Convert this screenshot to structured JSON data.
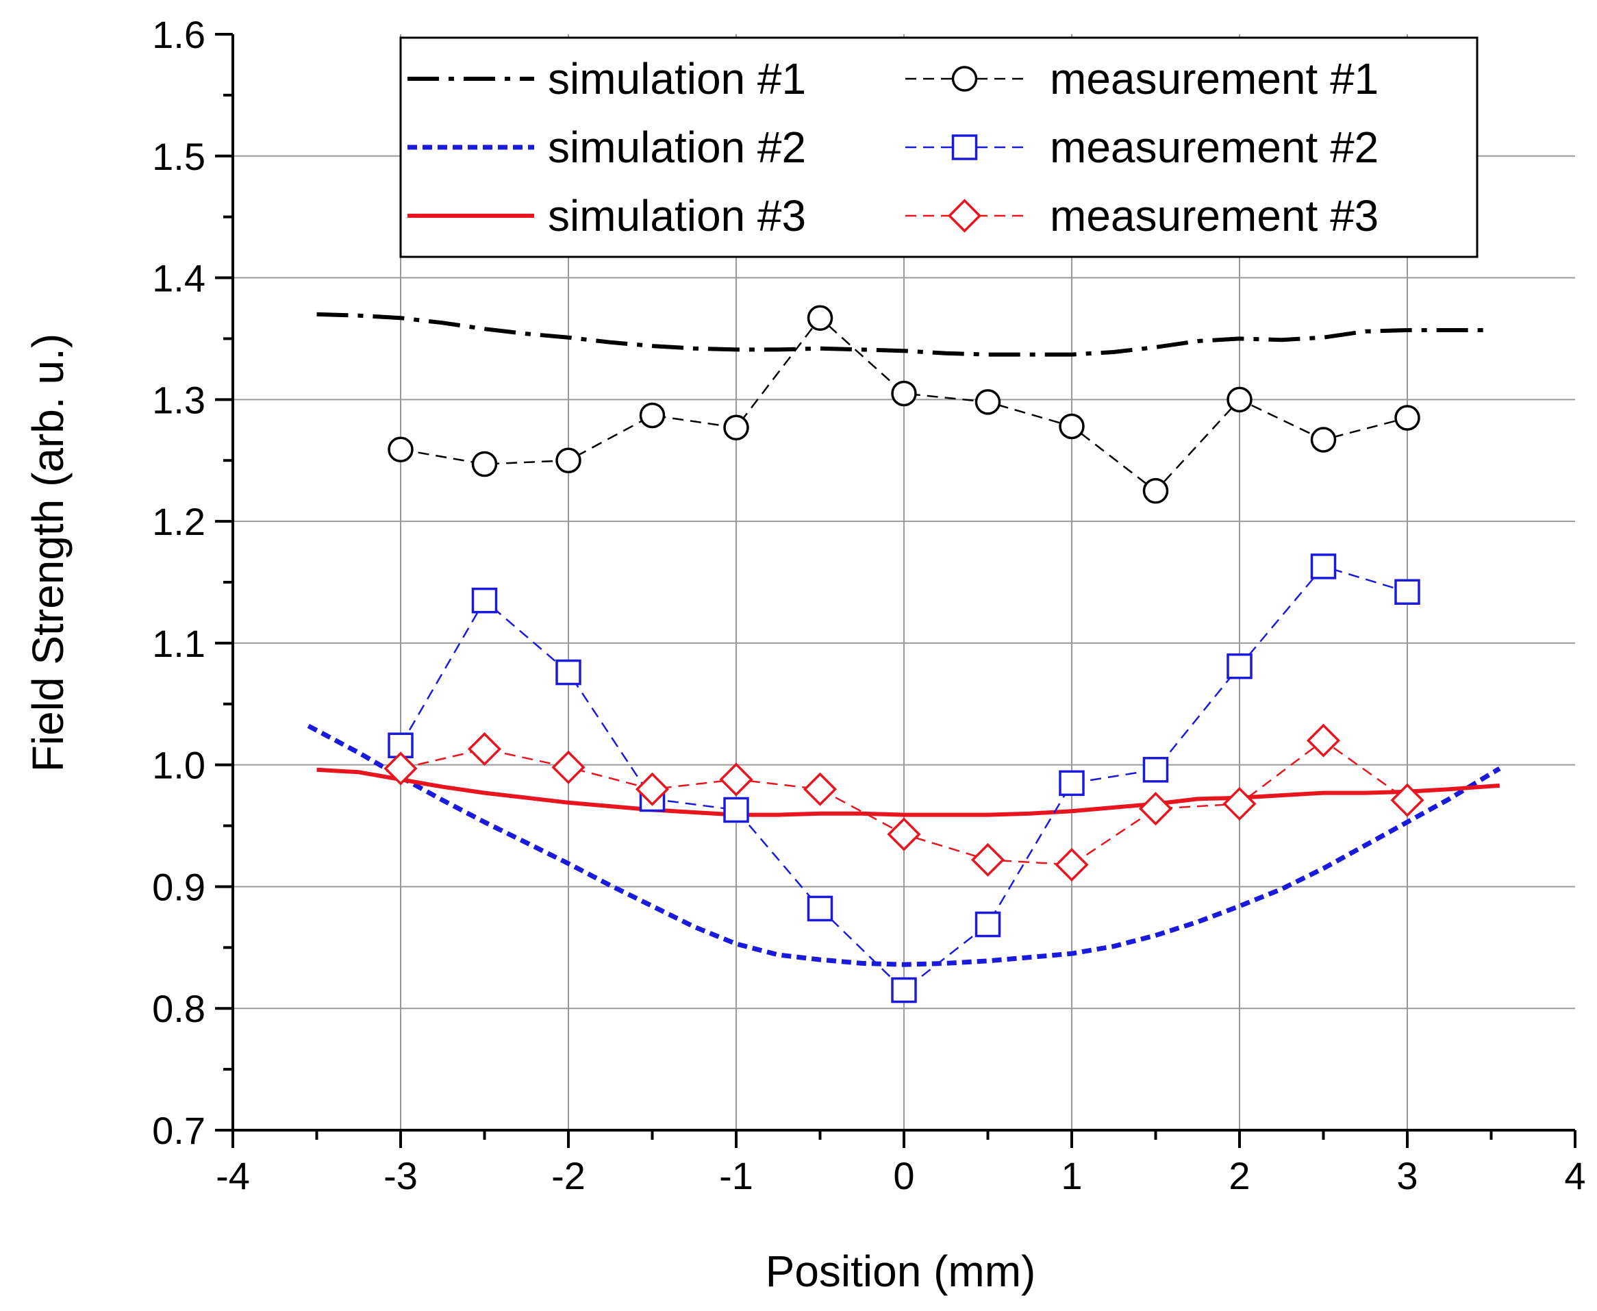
{
  "chart_data": {
    "type": "line",
    "title": "",
    "xlabel": "Position (mm)",
    "ylabel": "Field Strength (arb. u.)",
    "xlim": [
      -4,
      4
    ],
    "ylim": [
      0.7,
      1.6
    ],
    "x_ticks": [
      -4,
      -3,
      -2,
      -1,
      0,
      1,
      2,
      3,
      4
    ],
    "x_tick_labels": [
      "-4",
      "-3",
      "-2",
      "-1",
      "0",
      "1",
      "2",
      "3",
      "4"
    ],
    "y_ticks": [
      0.7,
      0.8,
      0.9,
      1.0,
      1.1,
      1.2,
      1.3,
      1.4,
      1.5,
      1.6
    ],
    "y_tick_labels": [
      "0.7",
      "0.8",
      "0.9",
      "1.0",
      "1.1",
      "1.2",
      "1.3",
      "1.4",
      "1.5",
      "1.6"
    ],
    "grid": true,
    "legend_position": "top-right",
    "series": [
      {
        "name": "simulation #1",
        "kind": "line",
        "style": "dashdot",
        "color": "#000000",
        "x": [
          -3.5,
          -3.25,
          -3.0,
          -2.75,
          -2.5,
          -2.25,
          -2.0,
          -1.75,
          -1.5,
          -1.25,
          -1.0,
          -0.75,
          -0.5,
          -0.25,
          0.0,
          0.25,
          0.5,
          0.75,
          1.0,
          1.25,
          1.5,
          1.75,
          2.0,
          2.25,
          2.5,
          2.75,
          3.0,
          3.25,
          3.5
        ],
        "y": [
          1.37,
          1.369,
          1.367,
          1.363,
          1.358,
          1.354,
          1.351,
          1.347,
          1.344,
          1.342,
          1.341,
          1.341,
          1.342,
          1.341,
          1.34,
          1.338,
          1.337,
          1.337,
          1.337,
          1.339,
          1.343,
          1.348,
          1.35,
          1.349,
          1.351,
          1.356,
          1.357,
          1.357,
          1.357
        ]
      },
      {
        "name": "simulation #2",
        "kind": "line",
        "style": "dashed",
        "color": "#1a1adc",
        "x": [
          -3.55,
          -3.25,
          -3.0,
          -2.75,
          -2.5,
          -2.25,
          -2.0,
          -1.75,
          -1.5,
          -1.25,
          -1.0,
          -0.75,
          -0.5,
          -0.25,
          0.0,
          0.25,
          0.5,
          0.75,
          1.0,
          1.25,
          1.5,
          1.75,
          2.0,
          2.25,
          2.5,
          2.75,
          3.0,
          3.25,
          3.55
        ],
        "y": [
          1.032,
          1.01,
          0.99,
          0.971,
          0.953,
          0.936,
          0.919,
          0.901,
          0.884,
          0.867,
          0.853,
          0.844,
          0.84,
          0.837,
          0.836,
          0.837,
          0.839,
          0.842,
          0.845,
          0.851,
          0.86,
          0.871,
          0.884,
          0.898,
          0.915,
          0.934,
          0.953,
          0.972,
          0.997
        ]
      },
      {
        "name": "simulation #3",
        "kind": "line",
        "style": "solid",
        "color": "#e8141e",
        "x": [
          -3.5,
          -3.25,
          -3.0,
          -2.75,
          -2.5,
          -2.25,
          -2.0,
          -1.75,
          -1.5,
          -1.25,
          -1.0,
          -0.75,
          -0.5,
          -0.25,
          0.0,
          0.25,
          0.5,
          0.75,
          1.0,
          1.25,
          1.5,
          1.75,
          2.0,
          2.25,
          2.5,
          2.75,
          3.0,
          3.25,
          3.55
        ],
        "y": [
          0.996,
          0.994,
          0.988,
          0.982,
          0.977,
          0.973,
          0.969,
          0.966,
          0.963,
          0.961,
          0.959,
          0.959,
          0.96,
          0.96,
          0.959,
          0.959,
          0.959,
          0.96,
          0.962,
          0.965,
          0.968,
          0.972,
          0.973,
          0.975,
          0.977,
          0.977,
          0.978,
          0.98,
          0.983
        ]
      },
      {
        "name": "measurement #1",
        "kind": "line+markers",
        "style": "dashed",
        "marker": "circle",
        "color": "#000000",
        "x": [
          -3.0,
          -2.5,
          -2.0,
          -1.5,
          -1.0,
          -0.5,
          0.0,
          0.5,
          1.0,
          1.5,
          2.0,
          2.5,
          3.0
        ],
        "y": [
          1.259,
          1.247,
          1.25,
          1.287,
          1.277,
          1.367,
          1.305,
          1.298,
          1.278,
          1.225,
          1.3,
          1.267,
          1.285
        ]
      },
      {
        "name": "measurement #2",
        "kind": "line+markers",
        "style": "dashed",
        "marker": "square",
        "color": "#1a1adc",
        "x": [
          -3.0,
          -2.5,
          -2.0,
          -1.5,
          -1.0,
          -0.5,
          0.0,
          0.5,
          1.0,
          1.5,
          2.0,
          2.5,
          3.0
        ],
        "y": [
          1.016,
          1.135,
          1.076,
          0.972,
          0.963,
          0.882,
          0.815,
          0.869,
          0.985,
          0.996,
          1.081,
          1.163,
          1.142
        ]
      },
      {
        "name": "measurement #3",
        "kind": "line+markers",
        "style": "dashed",
        "marker": "diamond",
        "color": "#e8141e",
        "x": [
          -3.0,
          -2.5,
          -2.0,
          -1.5,
          -1.0,
          -0.5,
          0.0,
          0.5,
          1.0,
          1.5,
          2.0,
          2.5,
          3.0
        ],
        "y": [
          0.997,
          1.013,
          0.998,
          0.98,
          0.988,
          0.98,
          0.943,
          0.922,
          0.918,
          0.964,
          0.968,
          1.02,
          0.971
        ]
      }
    ],
    "legend": {
      "items": [
        {
          "label": "simulation #1",
          "series": 0
        },
        {
          "label": "measurement #1",
          "series": 3
        },
        {
          "label": "simulation #2",
          "series": 1
        },
        {
          "label": "measurement #2",
          "series": 4
        },
        {
          "label": "simulation #3",
          "series": 2
        },
        {
          "label": "measurement #3",
          "series": 5
        }
      ]
    }
  }
}
